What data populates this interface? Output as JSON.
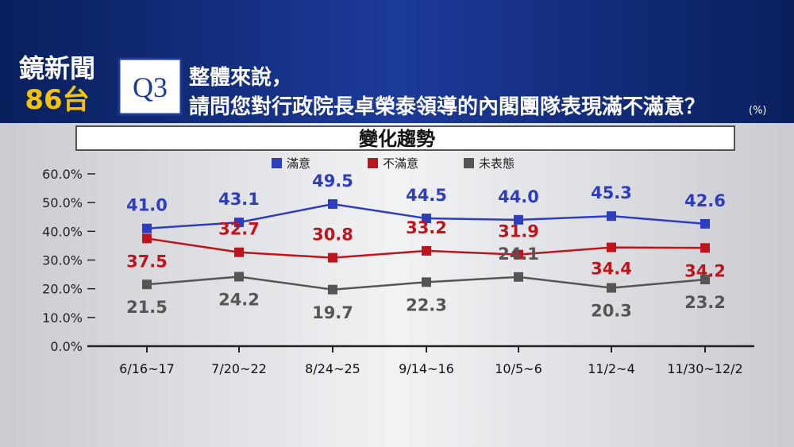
{
  "header": {
    "logo_line1": "鏡新聞",
    "logo_line2": "86台",
    "question_number": "Q3",
    "question_line1": "整體來說，",
    "question_line2": "請問您對行政院長卓榮泰領導的內閣團隊表現滿不滿意？",
    "unit": "(%)"
  },
  "chart_data": {
    "type": "line",
    "title": "變化趨勢",
    "categories": [
      "6/16~17",
      "7/20~22",
      "8/24~25",
      "9/14~16",
      "10/5~6",
      "11/2~4",
      "11/30~12/2"
    ],
    "series": [
      {
        "name": "滿意",
        "color": "#2e3dbf",
        "values": [
          41.0,
          43.1,
          49.5,
          44.5,
          44.0,
          45.3,
          42.6
        ],
        "value_labels": [
          "41.0",
          "43.1",
          "49.5",
          "44.5",
          "44.0",
          "45.3",
          "42.6"
        ]
      },
      {
        "name": "不滿意",
        "color": "#c0141c",
        "values": [
          37.5,
          32.7,
          30.8,
          33.2,
          31.9,
          34.4,
          34.2
        ],
        "value_labels": [
          "37.5",
          "32.7",
          "30.8",
          "33.2",
          "31.9",
          "34.4",
          "34.2"
        ]
      },
      {
        "name": "未表態",
        "color": "#555555",
        "values": [
          21.5,
          24.2,
          19.7,
          22.3,
          24.1,
          20.3,
          23.2
        ],
        "value_labels": [
          "21.5",
          "24.2",
          "19.7",
          "22.3",
          "24.1",
          "20.3",
          "23.2"
        ]
      }
    ],
    "ylim": [
      0,
      60
    ],
    "yticks": [
      {
        "value": 0,
        "label": "0.0%"
      },
      {
        "value": 10,
        "label": "10.0%"
      },
      {
        "value": 20,
        "label": "20.0%"
      },
      {
        "value": 30,
        "label": "30.0%"
      },
      {
        "value": 40,
        "label": "40.0%"
      },
      {
        "value": 50,
        "label": "50.0%"
      },
      {
        "value": 60,
        "label": "60.0%"
      }
    ],
    "legend": "top"
  }
}
